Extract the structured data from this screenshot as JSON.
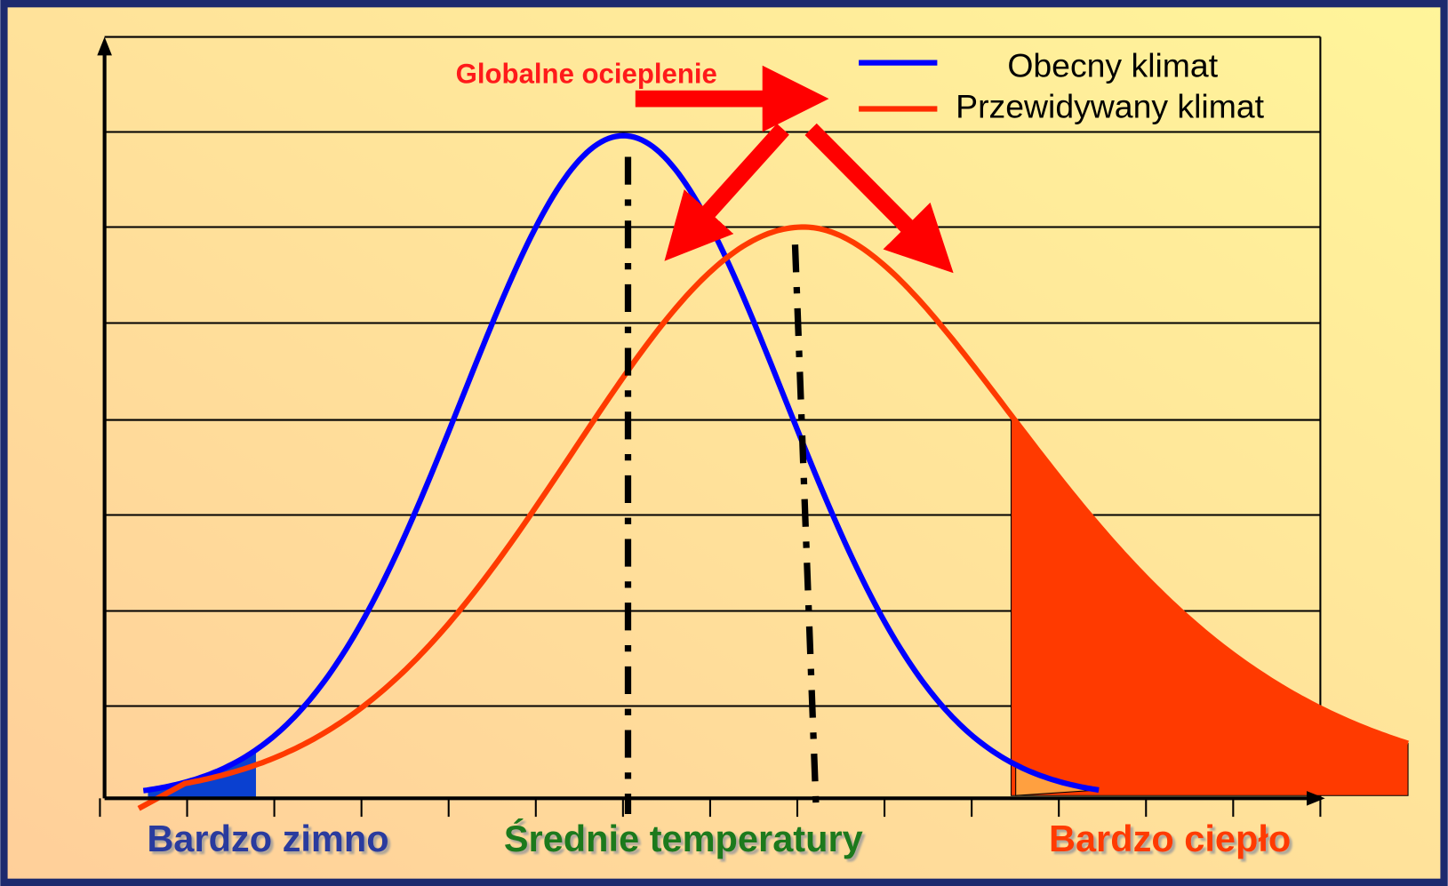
{
  "title": "Globalne ocieplenie",
  "legend": [
    {
      "label": "Obecny klimat"
    },
    {
      "label": "Przewidywany klimat"
    }
  ],
  "labels": [
    "Bardzo zimno",
    "Średnie temperatury",
    "Bardzo ciepło"
  ]
}
